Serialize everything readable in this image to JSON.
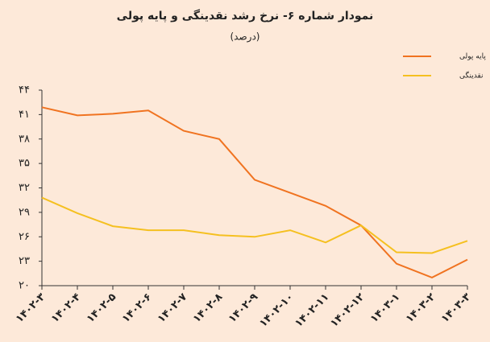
{
  "chart_data": {
    "type": "line",
    "title": "نمودار شماره ۶- نرخ رشد نقدینگی و پایه پولی",
    "subtitle": "(درصد)",
    "categories": [
      "۱۴۰۲-۳",
      "۱۴۰۲-۴",
      "۱۴۰۲-۵",
      "۱۴۰۲-۶",
      "۱۴۰۲-۷",
      "۱۴۰۲-۸",
      "۱۴۰۲-۹",
      "۱۴۰۲-۱۰",
      "۱۴۰۲-۱۱",
      "۱۴۰۲-۱۲",
      "۱۴۰۳-۱",
      "۱۴۰۳-۲",
      "۱۴۰۳-۳"
    ],
    "series": [
      {
        "name": "پایه پولی",
        "color": "#f07320",
        "values": [
          41.9,
          40.9,
          41.1,
          41.5,
          39.0,
          38.0,
          33.0,
          31.4,
          29.8,
          27.4,
          22.7,
          21.0,
          23.2
        ]
      },
      {
        "name": "نقدینگی",
        "color": "#f5c020",
        "values": [
          30.8,
          28.9,
          27.3,
          26.8,
          26.8,
          26.2,
          26.0,
          26.8,
          25.3,
          27.4,
          24.1,
          24.0,
          25.5
        ]
      }
    ],
    "ylim": [
      20,
      44
    ],
    "yticks": [
      {
        "value": 20,
        "label": "۲۰"
      },
      {
        "value": 23,
        "label": "۲۳"
      },
      {
        "value": 26,
        "label": "۲۶"
      },
      {
        "value": 29,
        "label": "۲۹"
      },
      {
        "value": 32,
        "label": "۳۲"
      },
      {
        "value": 35,
        "label": "۳۵"
      },
      {
        "value": 38,
        "label": "۳۸"
      },
      {
        "value": 41,
        "label": "۴۱"
      },
      {
        "value": 44,
        "label": "۴۴"
      }
    ],
    "grid": false
  }
}
